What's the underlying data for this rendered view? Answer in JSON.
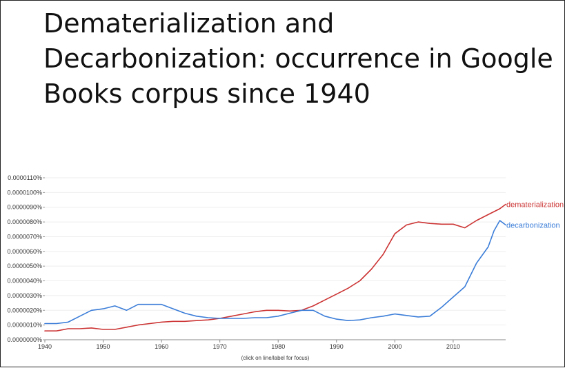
{
  "title": "Dematerialization and Decarbonization: occurrence in Google Books corpus since 1940",
  "footnote": "(click on line/label for focus)",
  "chart_data": {
    "type": "line",
    "ylim": [
      0,
      1.1e-07
    ],
    "xlim": [
      1940,
      2019
    ],
    "yticks": [
      0,
      1e-08,
      2e-08,
      3e-08,
      4e-08,
      5e-08,
      6e-08,
      7e-08,
      8e-08,
      9e-08,
      1e-07,
      1.1e-07
    ],
    "ytick_labels": [
      "0.0000000%",
      "0.0000010%",
      "0.0000020%",
      "0.0000030%",
      "0.0000040%",
      "0.0000050%",
      "0.0000060%",
      "0.0000070%",
      "0.0000080%",
      "0.0000090%",
      "0.0000100%",
      "0.0000110%"
    ],
    "xticks": [
      1940,
      1950,
      1960,
      1970,
      1980,
      1990,
      2000,
      2010
    ],
    "xtick_labels": [
      "1940",
      "1950",
      "1960",
      "1970",
      "1980",
      "1990",
      "2000",
      "2010"
    ],
    "grid": true,
    "series": [
      {
        "name": "dematerialization",
        "color": "#cc3333",
        "x": [
          1940,
          1942,
          1944,
          1946,
          1948,
          1950,
          1952,
          1954,
          1956,
          1958,
          1960,
          1962,
          1964,
          1966,
          1968,
          1970,
          1972,
          1974,
          1976,
          1978,
          1980,
          1982,
          1984,
          1986,
          1988,
          1990,
          1992,
          1994,
          1996,
          1998,
          2000,
          2002,
          2004,
          2006,
          2008,
          2010,
          2012,
          2014,
          2016,
          2018,
          2019
        ],
        "y": [
          6e-09,
          6e-09,
          7.5e-09,
          7.5e-09,
          8e-09,
          7e-09,
          7e-09,
          8.5e-09,
          1e-08,
          1.1e-08,
          1.2e-08,
          1.25e-08,
          1.25e-08,
          1.3e-08,
          1.35e-08,
          1.45e-08,
          1.6e-08,
          1.75e-08,
          1.9e-08,
          2e-08,
          2e-08,
          1.95e-08,
          2e-08,
          2.3e-08,
          2.7e-08,
          3.1e-08,
          3.5e-08,
          4e-08,
          4.8e-08,
          5.8e-08,
          7.2e-08,
          7.8e-08,
          8e-08,
          7.9e-08,
          7.85e-08,
          7.85e-08,
          7.6e-08,
          8.1e-08,
          8.5e-08,
          8.9e-08,
          9.2e-08
        ]
      },
      {
        "name": "decarbonization",
        "color": "#3b7dd8",
        "x": [
          1940,
          1942,
          1944,
          1946,
          1948,
          1950,
          1952,
          1954,
          1956,
          1958,
          1960,
          1962,
          1964,
          1966,
          1968,
          1970,
          1972,
          1974,
          1976,
          1978,
          1980,
          1982,
          1984,
          1986,
          1988,
          1990,
          1992,
          1994,
          1996,
          1998,
          2000,
          2002,
          2004,
          2006,
          2008,
          2010,
          2012,
          2014,
          2016,
          2017,
          2018,
          2019
        ],
        "y": [
          1.1e-08,
          1.1e-08,
          1.2e-08,
          1.6e-08,
          2e-08,
          2.1e-08,
          2.3e-08,
          2e-08,
          2.4e-08,
          2.4e-08,
          2.4e-08,
          2.1e-08,
          1.8e-08,
          1.6e-08,
          1.5e-08,
          1.45e-08,
          1.45e-08,
          1.45e-08,
          1.5e-08,
          1.5e-08,
          1.6e-08,
          1.8e-08,
          2e-08,
          2e-08,
          1.6e-08,
          1.4e-08,
          1.3e-08,
          1.35e-08,
          1.5e-08,
          1.6e-08,
          1.75e-08,
          1.65e-08,
          1.55e-08,
          1.6e-08,
          2.2e-08,
          2.9e-08,
          3.6e-08,
          5.2e-08,
          6.3e-08,
          7.4e-08,
          8.1e-08,
          7.8e-08
        ]
      }
    ]
  }
}
